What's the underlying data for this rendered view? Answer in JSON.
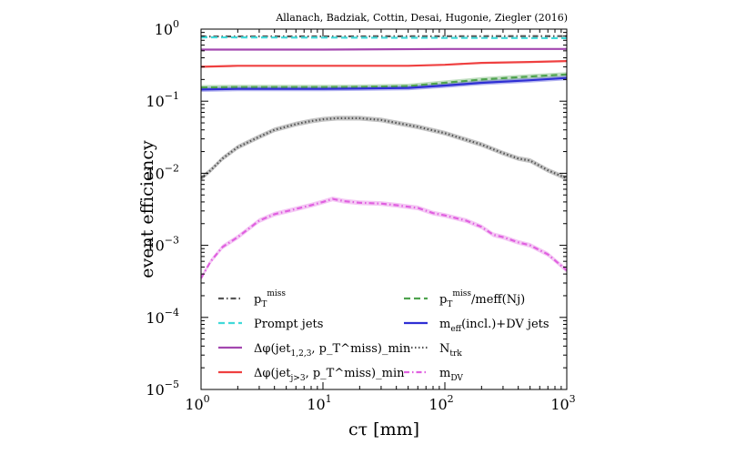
{
  "chart_data": {
    "type": "line",
    "credit": "Allanach, Badziak, Cottin, Desai, Hugonie, Ziegler (2016)",
    "xlabel": "cτ [mm]",
    "ylabel": "event efficiency",
    "x_scale": "log",
    "y_scale": "log",
    "xlim": [
      1,
      1000
    ],
    "ylim": [
      1e-05,
      1
    ],
    "x_ticks": [
      {
        "value": 1,
        "base": "10",
        "exp": "0"
      },
      {
        "value": 10,
        "base": "10",
        "exp": "1"
      },
      {
        "value": 100,
        "base": "10",
        "exp": "2"
      },
      {
        "value": 1000,
        "base": "10",
        "exp": "3"
      }
    ],
    "y_ticks": [
      {
        "value": 1,
        "base": "10",
        "exp": "0"
      },
      {
        "value": 0.1,
        "base": "10",
        "exp": "−1"
      },
      {
        "value": 0.01,
        "base": "10",
        "exp": "−2"
      },
      {
        "value": 0.001,
        "base": "10",
        "exp": "−3"
      },
      {
        "value": 0.0001,
        "base": "10",
        "exp": "−4"
      },
      {
        "value": 1e-05,
        "base": "10",
        "exp": "−5"
      }
    ],
    "series": [
      {
        "name": "p_T^miss",
        "color": "#555555",
        "style": "dashdot",
        "band": false,
        "x": [
          1,
          1000
        ],
        "y": [
          0.79,
          0.8
        ]
      },
      {
        "name": "Prompt jets",
        "color": "#41d9d9",
        "style": "dashed",
        "band": false,
        "x": [
          1,
          1000
        ],
        "y": [
          0.77,
          0.75
        ]
      },
      {
        "name": "Δφ(jet_1,2,3, p_T^miss)_min",
        "color": "#a347b0",
        "style": "solid",
        "band": false,
        "x": [
          1,
          10,
          100,
          1000
        ],
        "y": [
          0.52,
          0.52,
          0.53,
          0.53
        ]
      },
      {
        "name": "Δφ(jet_j>3, p_T^miss)_min",
        "color": "#ef4040",
        "style": "solid",
        "band": false,
        "x": [
          1,
          2,
          5,
          10,
          20,
          50,
          100,
          200,
          500,
          1000
        ],
        "y": [
          0.3,
          0.31,
          0.31,
          0.31,
          0.31,
          0.31,
          0.32,
          0.34,
          0.35,
          0.36
        ]
      },
      {
        "name": "p_T^miss/m_eff(N_j)",
        "color": "#4fa34f",
        "style": "dashed",
        "band": true,
        "x": [
          1,
          2,
          5,
          10,
          20,
          50,
          100,
          200,
          500,
          1000
        ],
        "y": [
          0.155,
          0.157,
          0.157,
          0.157,
          0.158,
          0.162,
          0.18,
          0.2,
          0.22,
          0.235
        ]
      },
      {
        "name": "m_eff(incl.)+DV jets",
        "color": "#2f2fd4",
        "style": "solid",
        "band": true,
        "x": [
          1,
          2,
          5,
          10,
          20,
          50,
          100,
          200,
          500,
          1000
        ],
        "y": [
          0.145,
          0.148,
          0.148,
          0.148,
          0.15,
          0.153,
          0.165,
          0.18,
          0.195,
          0.21
        ]
      },
      {
        "name": "N_trk",
        "color": "#555555",
        "style": "dotted",
        "band": true,
        "x": [
          1,
          1.2,
          1.5,
          2,
          3,
          4,
          6,
          8,
          10,
          13,
          20,
          30,
          40,
          60,
          100,
          200,
          300,
          400,
          500,
          700,
          1000
        ],
        "y": [
          0.0085,
          0.011,
          0.016,
          0.023,
          0.032,
          0.04,
          0.048,
          0.053,
          0.056,
          0.058,
          0.058,
          0.055,
          0.05,
          0.044,
          0.036,
          0.025,
          0.019,
          0.016,
          0.015,
          0.011,
          0.0085
        ]
      },
      {
        "name": "m_DV",
        "color": "#e060e0",
        "style": "dashdot",
        "band": true,
        "x": [
          1,
          1.2,
          1.5,
          2,
          3,
          4,
          6,
          8,
          10,
          12,
          15,
          20,
          30,
          40,
          60,
          80,
          100,
          150,
          200,
          250,
          300,
          400,
          500,
          700,
          1000
        ],
        "y": [
          0.00035,
          0.0006,
          0.00095,
          0.0013,
          0.0022,
          0.0027,
          0.0032,
          0.0036,
          0.004,
          0.0044,
          0.0041,
          0.0039,
          0.0038,
          0.0036,
          0.0033,
          0.0028,
          0.0026,
          0.0022,
          0.0018,
          0.0014,
          0.0013,
          0.0011,
          0.001,
          0.00075,
          0.00045
        ]
      }
    ],
    "legend": {
      "placement": "lower-center",
      "entries": [
        {
          "label": "p_T^miss",
          "base": "p",
          "sub": "T",
          "sup": "miss",
          "tail": "",
          "color": "#555555",
          "style": "dashdot"
        },
        {
          "label": "p_T^miss/m_eff(N_j)",
          "base": "p",
          "sub": "T",
          "sup": "miss",
          "tail": "/meff(Nj)",
          "color": "#4fa34f",
          "style": "dashed"
        },
        {
          "label": "Prompt jets",
          "base": "Prompt jets",
          "sub": "",
          "sup": "",
          "tail": "",
          "color": "#41d9d9",
          "style": "dashed"
        },
        {
          "label": "m_eff(incl.)+DV jets",
          "base": "m",
          "sub": "eff",
          "sup": "",
          "tail": "(incl.)+DV jets",
          "color": "#2f2fd4",
          "style": "solid"
        },
        {
          "label": "Δφ(jet_1,2,3, p_T^miss)_min",
          "base": "Δφ(jet",
          "sub": "1,2,3",
          "sup": "",
          "tail": ", p_T^miss)_min",
          "color": "#a347b0",
          "style": "solid"
        },
        {
          "label": "N_trk",
          "base": "N",
          "sub": "trk",
          "sup": "",
          "tail": "",
          "color": "#555555",
          "style": "dotted"
        },
        {
          "label": "Δφ(jet_j>3, p_T^miss)_min",
          "base": "Δφ(jet",
          "sub": "j>3",
          "sup": "",
          "tail": ", p_T^miss)_min",
          "color": "#ef4040",
          "style": "solid"
        },
        {
          "label": "m_DV",
          "base": "m",
          "sub": "DV",
          "sup": "",
          "tail": "",
          "color": "#e060e0",
          "style": "dashdot"
        }
      ]
    }
  }
}
